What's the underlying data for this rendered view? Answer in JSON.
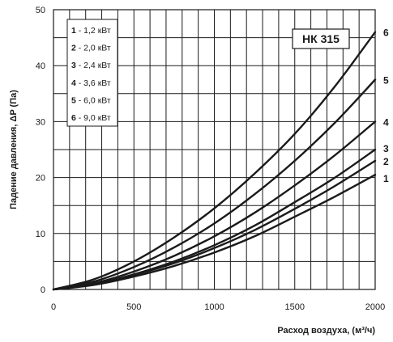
{
  "chart_data": {
    "type": "line",
    "model_label": "НК 315",
    "xlabel": "Расход воздуха, (м³/ч)",
    "ylabel": "Падение давления, ΔP (Па)",
    "xlim": [
      0,
      2000
    ],
    "ylim": [
      0,
      50
    ],
    "x_ticks": [
      "0",
      "500",
      "1000",
      "1500",
      "2000"
    ],
    "y_ticks": [
      "0",
      "10",
      "20",
      "30",
      "40",
      "50"
    ],
    "x_minor_step": 100,
    "y_minor_step": 5,
    "grid": true,
    "legend_position": "top-left",
    "line_color": "#1a1a1a",
    "series": [
      {
        "id": "1",
        "legend_num": "1",
        "legend_text": " - 1,2 кВт",
        "end_label": "1",
        "x": [
          0,
          250,
          500,
          750,
          1000,
          1250,
          1500,
          1750,
          2000
        ],
        "y": [
          0,
          0.8,
          2.3,
          4.2,
          6.6,
          9.5,
          13.0,
          16.6,
          20.5
        ]
      },
      {
        "id": "2",
        "legend_num": "2",
        "legend_text": " - 2,0 кВт",
        "end_label": "2",
        "x": [
          0,
          250,
          500,
          750,
          1000,
          1250,
          1500,
          1750,
          2000
        ],
        "y": [
          0,
          0.9,
          2.6,
          4.7,
          7.4,
          10.6,
          14.4,
          18.5,
          23.0
        ]
      },
      {
        "id": "3",
        "legend_num": "3",
        "legend_text": " - 2,4 кВт",
        "end_label": "3",
        "x": [
          0,
          250,
          500,
          750,
          1000,
          1250,
          1500,
          1750,
          2000
        ],
        "y": [
          0,
          0.9,
          2.7,
          5.0,
          7.9,
          11.4,
          15.6,
          20.0,
          25.0
        ]
      },
      {
        "id": "4",
        "legend_num": "4",
        "legend_text": " - 3,6 кВт",
        "end_label": "4",
        "x": [
          0,
          250,
          500,
          750,
          1000,
          1250,
          1500,
          1750,
          2000
        ],
        "y": [
          0,
          1.1,
          3.2,
          6.0,
          9.5,
          13.7,
          18.6,
          24.0,
          30.0
        ]
      },
      {
        "id": "5",
        "legend_num": "5",
        "legend_text": " - 6,0 кВт",
        "end_label": "5",
        "x": [
          0,
          250,
          500,
          750,
          1000,
          1250,
          1500,
          1750,
          2000
        ],
        "y": [
          0,
          1.4,
          4.0,
          7.5,
          11.8,
          17.0,
          23.0,
          29.8,
          37.5
        ]
      },
      {
        "id": "6",
        "legend_num": "6",
        "legend_text": " - 9,0 кВт",
        "end_label": "6",
        "x": [
          0,
          250,
          500,
          750,
          1000,
          1250,
          1500,
          1750,
          2000
        ],
        "y": [
          0,
          1.8,
          5.0,
          9.3,
          14.5,
          20.7,
          27.8,
          36.3,
          46.0
        ]
      }
    ]
  }
}
